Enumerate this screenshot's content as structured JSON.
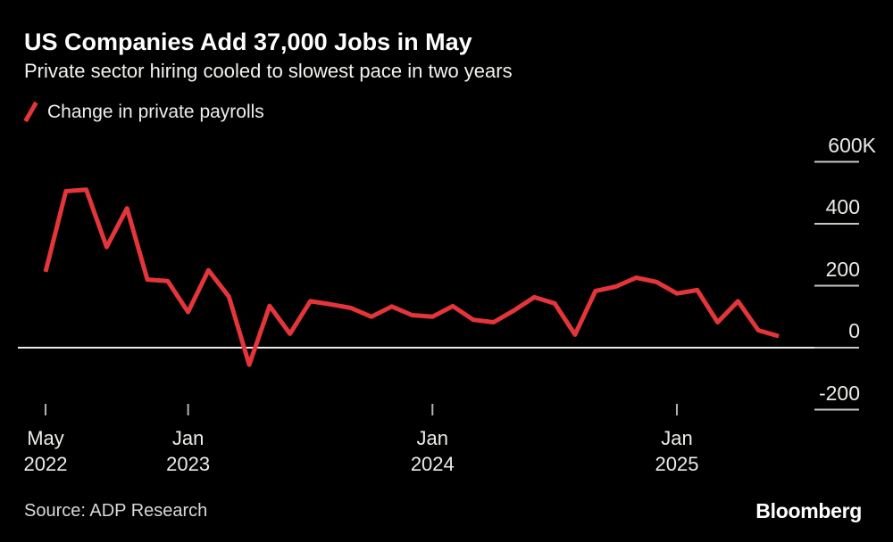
{
  "header": {
    "title": "US Companies Add 37,000 Jobs in May",
    "subtitle": "Private sector hiring cooled to slowest pace in two years"
  },
  "legend": {
    "label": "Change in private payrolls"
  },
  "footer": {
    "source": "Source: ADP Research",
    "brand": "Bloomberg"
  },
  "chart_data": {
    "type": "line",
    "title": "US Companies Add 37,000 Jobs in May",
    "subtitle": "Private sector hiring cooled to slowest pace in two years",
    "series_name": "Change in private payrolls",
    "unit": "thousands of jobs (K)",
    "x": [
      "May 2022",
      "Jun 2022",
      "Jul 2022",
      "Aug 2022",
      "Sep 2022",
      "Oct 2022",
      "Nov 2022",
      "Dec 2022",
      "Jan 2023",
      "Feb 2023",
      "Mar 2023",
      "Apr 2023",
      "May 2023",
      "Jun 2023",
      "Jul 2023",
      "Aug 2023",
      "Sep 2023",
      "Oct 2023",
      "Nov 2023",
      "Dec 2023",
      "Jan 2024",
      "Feb 2024",
      "Mar 2024",
      "Apr 2024",
      "May 2024",
      "Jun 2024",
      "Jul 2024",
      "Aug 2024",
      "Sep 2024",
      "Oct 2024",
      "Nov 2024",
      "Dec 2024",
      "Jan 2025",
      "Feb 2025",
      "Mar 2025",
      "Apr 2025",
      "May 2025"
    ],
    "values": [
      245,
      505,
      510,
      325,
      450,
      220,
      215,
      115,
      250,
      165,
      -55,
      135,
      45,
      150,
      140,
      128,
      100,
      133,
      105,
      100,
      134,
      90,
      82,
      120,
      163,
      143,
      42,
      183,
      197,
      226,
      212,
      175,
      186,
      82,
      150,
      56,
      37
    ],
    "x_axis": {
      "ticks": [
        {
          "month": "May",
          "year": "2022",
          "index": 0
        },
        {
          "month": "Jan",
          "year": "2023",
          "index": 7
        },
        {
          "month": "Jan",
          "year": "2024",
          "index": 19
        },
        {
          "month": "Jan",
          "year": "2025",
          "index": 31
        }
      ]
    },
    "y_axis": {
      "ticks": [
        {
          "label": "600K",
          "value": 600
        },
        {
          "label": "400",
          "value": 400
        },
        {
          "label": "200",
          "value": 200
        },
        {
          "label": "0",
          "value": 0
        },
        {
          "label": "-200",
          "value": -200
        }
      ],
      "range": [
        -250,
        650
      ],
      "side": "right"
    },
    "colors": {
      "line": "#e4353a",
      "background": "#000000",
      "baseline": "#ebebeb",
      "tick": "#c9c7c4",
      "text": "#edebe8"
    },
    "legend_position": "top-left",
    "grid": "off"
  }
}
